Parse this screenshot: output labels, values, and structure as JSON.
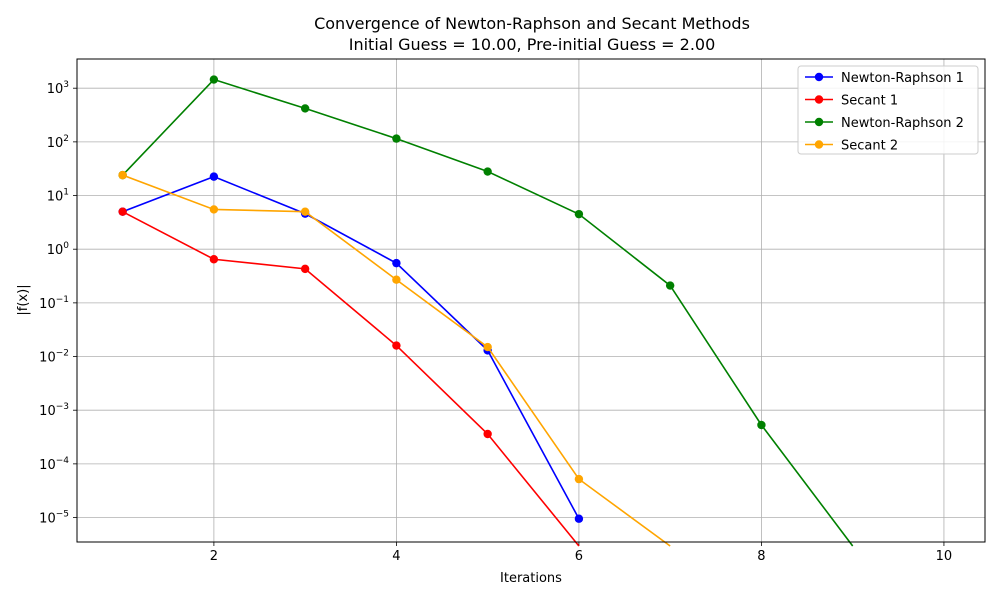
{
  "chart_data": {
    "type": "line",
    "title": "Convergence of Newton-Raphson and Secant Methods",
    "subtitle": "Initial Guess = 10.00, Pre-initial Guess = 2.00",
    "xlabel": "Iterations",
    "ylabel": "|f(x)|",
    "xlim": [
      0.5,
      10.45
    ],
    "ylim": [
      3.5e-06,
      3500.0
    ],
    "yscale": "log",
    "grid": true,
    "legend_position": "top-right",
    "x_ticks": [
      2,
      4,
      6,
      8,
      10
    ],
    "y_ticks": [
      {
        "value": 1e-05,
        "base": "10",
        "exp": "−5"
      },
      {
        "value": 0.0001,
        "base": "10",
        "exp": "−4"
      },
      {
        "value": 0.001,
        "base": "10",
        "exp": "−3"
      },
      {
        "value": 0.01,
        "base": "10",
        "exp": "−2"
      },
      {
        "value": 0.1,
        "base": "10",
        "exp": "−1"
      },
      {
        "value": 1,
        "base": "10",
        "exp": "0"
      },
      {
        "value": 10,
        "base": "10",
        "exp": "1"
      },
      {
        "value": 100,
        "base": "10",
        "exp": "2"
      },
      {
        "value": 1000,
        "base": "10",
        "exp": "3"
      }
    ],
    "series": [
      {
        "name": "Newton-Raphson 1",
        "color": "#0000ff",
        "x": [
          1,
          2,
          3,
          4,
          5,
          6
        ],
        "y": [
          5.0,
          22.5,
          4.6,
          0.55,
          0.013,
          9.5e-06
        ]
      },
      {
        "name": "Secant 1",
        "color": "#ff0000",
        "x": [
          1,
          2,
          3,
          4,
          5,
          6
        ],
        "y": [
          5.0,
          0.65,
          0.43,
          0.016,
          0.00036,
          0
        ]
      },
      {
        "name": "Newton-Raphson 2",
        "color": "#008000",
        "x": [
          1,
          2,
          3,
          4,
          5,
          6,
          7,
          8,
          9
        ],
        "y": [
          24.0,
          1450,
          420,
          115,
          28.0,
          4.5,
          0.21,
          0.00053,
          0
        ]
      },
      {
        "name": "Secant 2",
        "color": "#ffa500",
        "x": [
          1,
          2,
          3,
          4,
          5,
          6,
          7
        ],
        "y": [
          24.0,
          5.5,
          5.0,
          0.27,
          0.015,
          5.2e-05,
          0
        ]
      }
    ]
  }
}
